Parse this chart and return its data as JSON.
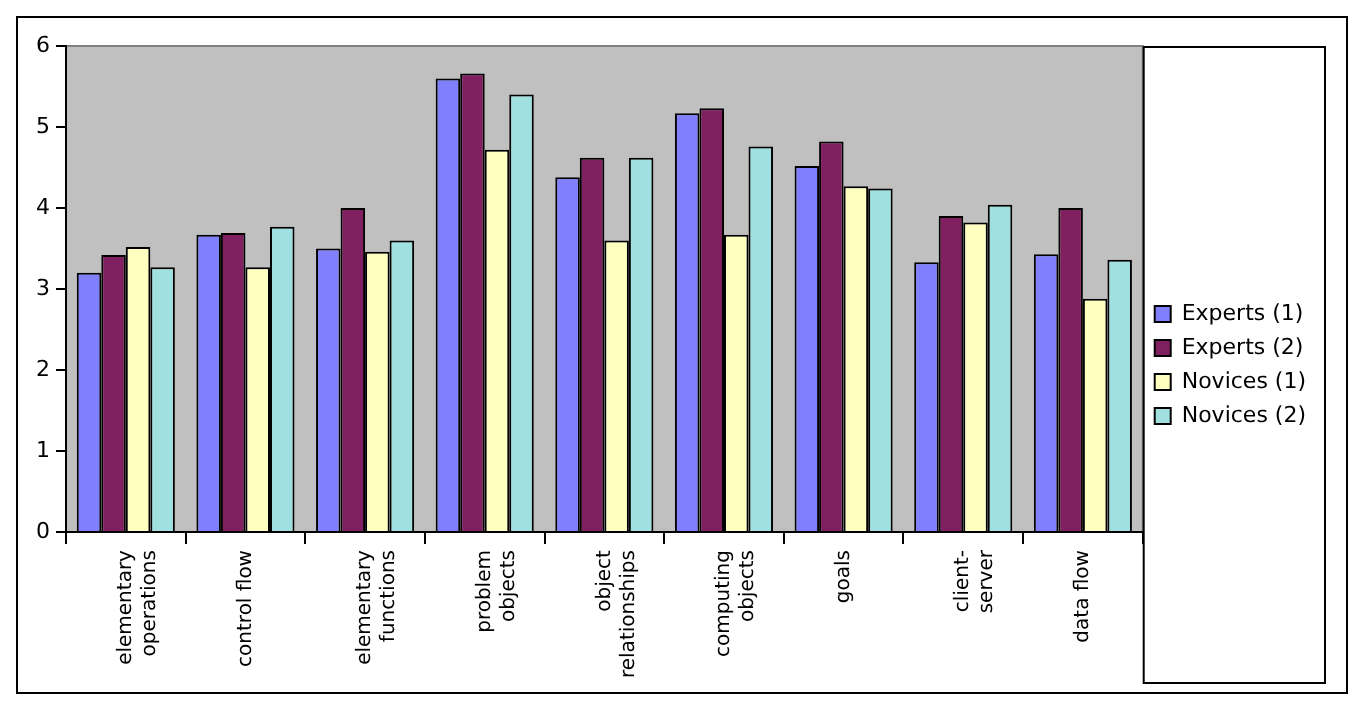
{
  "chart_data": {
    "type": "bar",
    "categories": [
      "elementary operations",
      "control flow",
      "elementary functions",
      "problem objects",
      "object relationships",
      "computing objects",
      "goals",
      "client-server",
      "data flow"
    ],
    "series": [
      {
        "name": "Experts (1)",
        "color": "#8080ff",
        "values": [
          3.2,
          3.67,
          3.5,
          5.6,
          4.38,
          5.17,
          4.52,
          3.33,
          3.43
        ]
      },
      {
        "name": "Experts (2)",
        "color": "#802060",
        "values": [
          3.42,
          3.69,
          4.0,
          5.66,
          4.62,
          5.23,
          4.82,
          3.9,
          4.0
        ]
      },
      {
        "name": "Novices (1)",
        "color": "#ffffc0",
        "values": [
          3.52,
          3.27,
          3.46,
          4.72,
          3.6,
          3.67,
          4.27,
          3.82,
          2.88
        ]
      },
      {
        "name": "Novices (2)",
        "color": "#a0e0e0",
        "values": [
          3.27,
          3.77,
          3.6,
          5.4,
          4.62,
          4.76,
          4.24,
          4.04,
          3.36
        ]
      }
    ],
    "ylim": [
      0,
      6
    ],
    "yticks": [
      0,
      1,
      2,
      3,
      4,
      5,
      6
    ],
    "grid": false,
    "legend": "right"
  }
}
